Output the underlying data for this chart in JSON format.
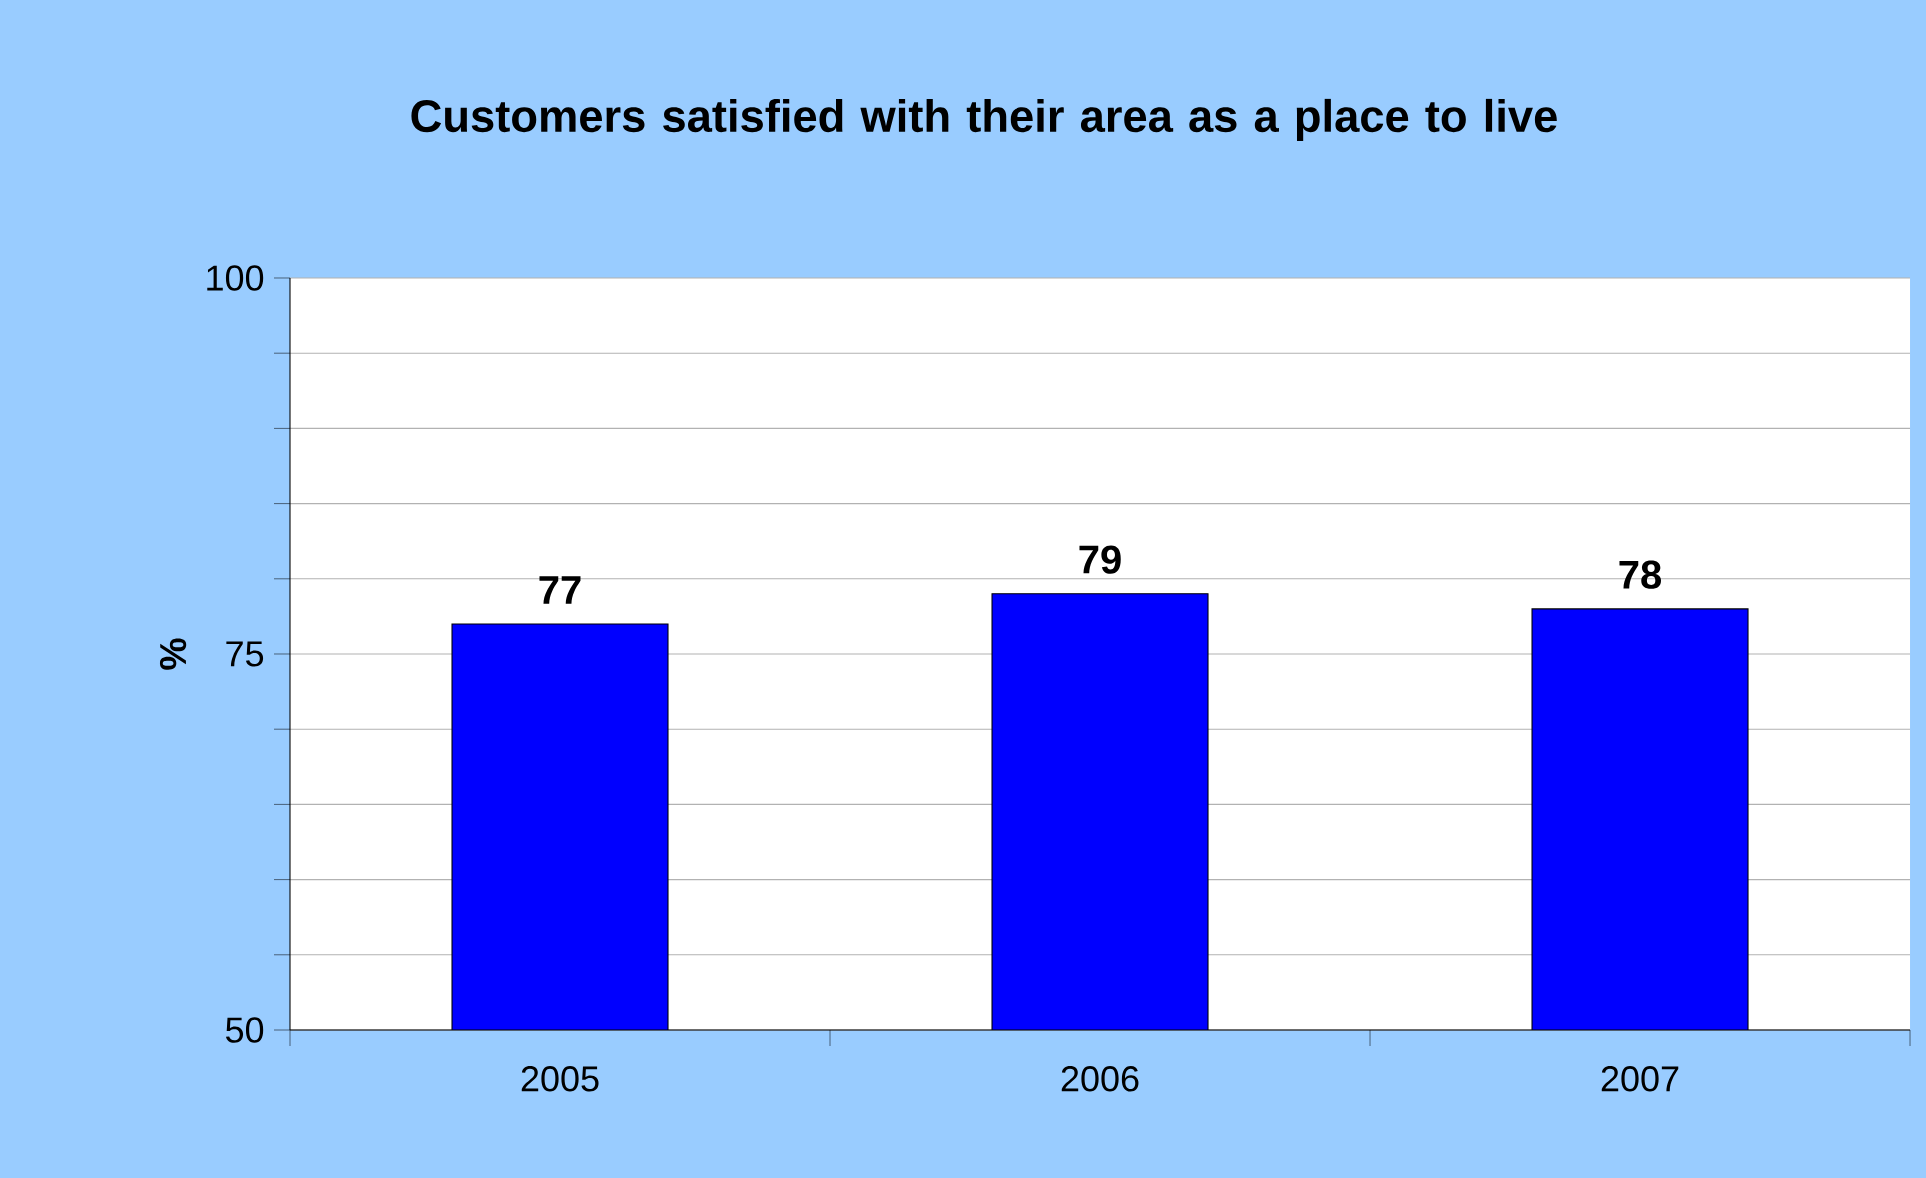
{
  "chart_data": {
    "type": "bar",
    "title": "Customers satisfied with their area as a place to live",
    "ylabel": "%",
    "categories": [
      "2005",
      "2006",
      "2007"
    ],
    "values": [
      77,
      79,
      78
    ],
    "color": "#0000ff",
    "ylim": [
      50,
      100
    ],
    "yticks": [
      50,
      {
        "value": 55,
        "label": null
      },
      {
        "value": 60,
        "label": null
      },
      {
        "value": 65,
        "label": null
      },
      {
        "value": 70,
        "label": null
      },
      75,
      {
        "value": 80,
        "label": null
      },
      {
        "value": 85,
        "label": null
      },
      {
        "value": 90,
        "label": null
      },
      {
        "value": 95,
        "label": null
      },
      100
    ],
    "grid": "y",
    "data_labels": true
  }
}
